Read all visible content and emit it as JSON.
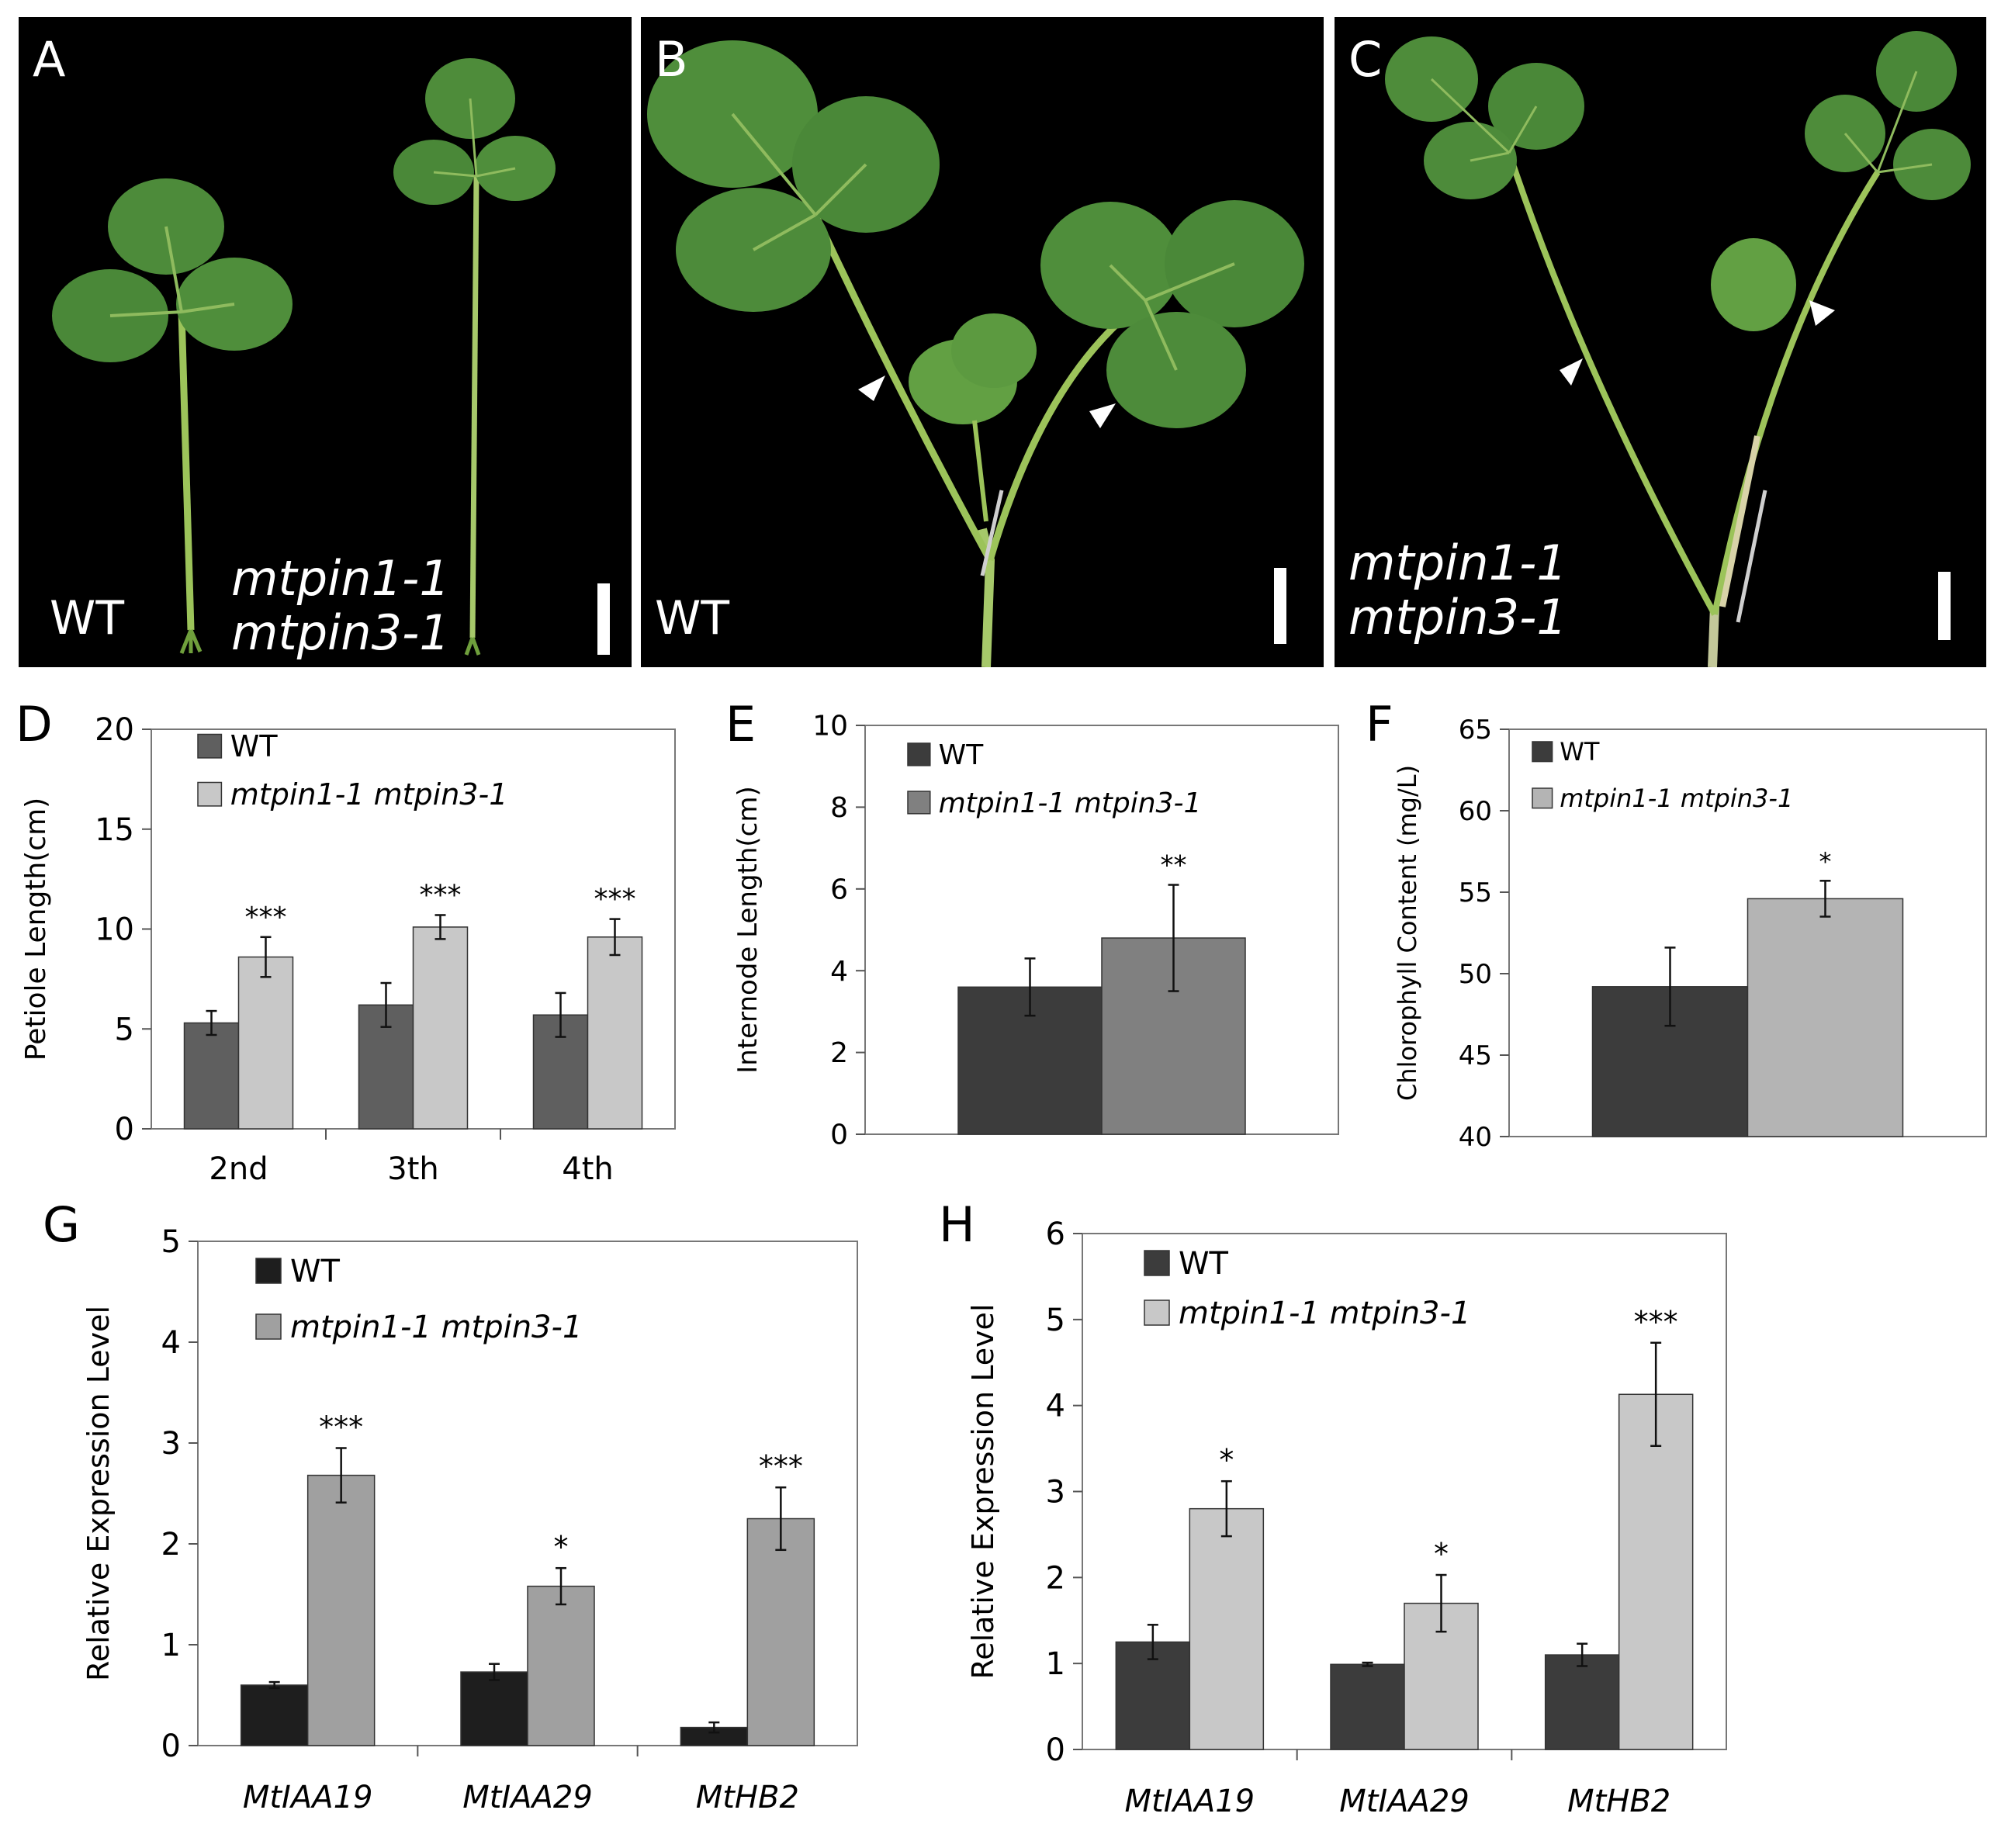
{
  "figure": {
    "panels_photo": [
      {
        "id": "A",
        "label": "A",
        "genotype_left": "WT",
        "genotype_right_line1": "mtpin1-1",
        "genotype_right_line2": "mtpin3-1"
      },
      {
        "id": "B",
        "label": "B",
        "genotype": "WT"
      },
      {
        "id": "C",
        "label": "C",
        "genotype_line1": "mtpin1-1",
        "genotype_line2": "mtpin3-1"
      }
    ]
  },
  "chart_data": [
    {
      "id": "D",
      "panel_label": "D",
      "type": "bar",
      "title": "",
      "xlabel": "",
      "ylabel": "Petiole Length(cm)",
      "categories": [
        "2nd",
        "3th",
        "4th"
      ],
      "ylim": [
        0,
        20
      ],
      "yticks": [
        0,
        5,
        10,
        15,
        20
      ],
      "series": [
        {
          "name": "WT",
          "color": "#5f5f5f",
          "values": [
            5.3,
            6.2,
            5.7
          ],
          "errors": [
            0.6,
            1.1,
            1.1
          ]
        },
        {
          "name": "mtpin1-1 mtpin3-1",
          "color": "#c8c8c8",
          "values": [
            8.6,
            10.1,
            9.6
          ],
          "errors": [
            1.0,
            0.6,
            0.9
          ]
        }
      ],
      "significance": [
        "***",
        "***",
        "***"
      ],
      "legend": "top-left"
    },
    {
      "id": "E",
      "panel_label": "E",
      "type": "bar",
      "title": "",
      "xlabel": "",
      "ylabel": "Internode Length(cm)",
      "categories": [
        ""
      ],
      "ylim": [
        0,
        10
      ],
      "yticks": [
        0,
        2,
        4,
        6,
        8,
        10
      ],
      "series": [
        {
          "name": "WT",
          "color": "#3c3c3c",
          "values": [
            3.6
          ],
          "errors": [
            0.7
          ]
        },
        {
          "name": "mtpin1-1 mtpin3-1",
          "color": "#808080",
          "values": [
            4.8
          ],
          "errors": [
            1.3
          ]
        }
      ],
      "significance": [
        "**"
      ],
      "legend": "top-left"
    },
    {
      "id": "F",
      "panel_label": "F",
      "type": "bar",
      "title": "",
      "xlabel": "",
      "ylabel": "Chlorophyll Content (mg/L)",
      "categories": [
        ""
      ],
      "ylim": [
        40,
        65
      ],
      "yticks": [
        40,
        45,
        50,
        55,
        60,
        65
      ],
      "series": [
        {
          "name": "WT",
          "color": "#3c3c3c",
          "values": [
            49.2
          ],
          "errors": [
            2.4
          ]
        },
        {
          "name": "mtpin1-1 mtpin3-1",
          "color": "#b4b4b4",
          "values": [
            54.6
          ],
          "errors": [
            1.1
          ]
        }
      ],
      "significance": [
        "*"
      ],
      "legend": "top-left"
    },
    {
      "id": "G",
      "panel_label": "G",
      "type": "bar",
      "title": "",
      "xlabel": "",
      "ylabel": "Relative Expression Level",
      "categories": [
        "MtIAA19",
        "MtIAA29",
        "MtHB2"
      ],
      "ylim": [
        0,
        5
      ],
      "yticks": [
        0,
        1,
        2,
        3,
        4,
        5
      ],
      "series": [
        {
          "name": "WT",
          "color": "#1e1e1e",
          "values": [
            0.6,
            0.73,
            0.18
          ],
          "errors": [
            0.03,
            0.08,
            0.05
          ]
        },
        {
          "name": "mtpin1-1 mtpin3-1",
          "color": "#a0a0a0",
          "values": [
            2.68,
            1.58,
            2.25
          ],
          "errors": [
            0.27,
            0.18,
            0.31
          ]
        }
      ],
      "significance": [
        "***",
        "*",
        "***"
      ],
      "legend": "top-left"
    },
    {
      "id": "H",
      "panel_label": "H",
      "type": "bar",
      "title": "",
      "xlabel": "",
      "ylabel": "Relative Expression Level",
      "categories": [
        "MtIAA19",
        "MtIAA29",
        "MtHB2"
      ],
      "ylim": [
        0,
        6
      ],
      "yticks": [
        0,
        1,
        2,
        3,
        4,
        5,
        6
      ],
      "series": [
        {
          "name": "WT",
          "color": "#3c3c3c",
          "values": [
            1.25,
            0.99,
            1.1
          ],
          "errors": [
            0.2,
            0.02,
            0.13
          ]
        },
        {
          "name": "mtpin1-1 mtpin3-1",
          "color": "#c8c8c8",
          "values": [
            2.8,
            1.7,
            4.13
          ],
          "errors": [
            0.32,
            0.33,
            0.6
          ]
        }
      ],
      "significance": [
        "*",
        "*",
        "***"
      ],
      "legend": "top-left"
    }
  ]
}
